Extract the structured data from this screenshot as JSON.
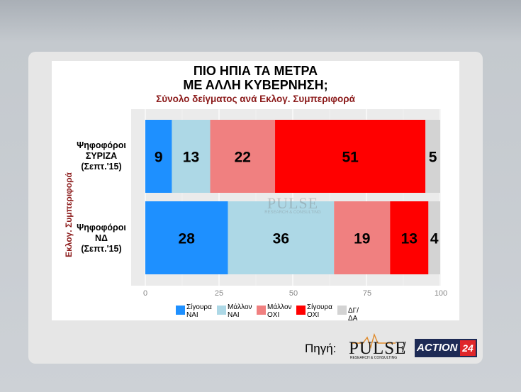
{
  "header": {
    "title_line1": "ΠΙΟ ΗΠΙΑ ΤΑ ΜΕΤΡΑ",
    "title_line2": "ΜΕ ΑΛΛΗ ΚΥΒΕΡΝΗΣΗ;",
    "subtitle": "Σύνολο δείγματος ανά Εκλογ. Συμπεριφορά"
  },
  "chart_data": {
    "type": "bar",
    "orientation": "horizontal-stacked",
    "ylabel": "Εκλογ. Συμπεριφορά",
    "categories": [
      {
        "line1": "Ψηφοφόροι",
        "line2": "ΣΥΡΙΖΑ",
        "line3": "(Σεπτ.'15)"
      },
      {
        "line1": "Ψηφοφόροι",
        "line2": "ΝΔ",
        "line3": "(Σεπτ.'15)"
      }
    ],
    "series": [
      {
        "name": "Σίγουρα ΝΑΙ",
        "name_line1": "Σίγουρα",
        "name_line2": "ΝΑΙ",
        "color": "#1e90ff",
        "values": [
          9,
          28
        ]
      },
      {
        "name": "Μάλλον ΝΑΙ",
        "name_line1": "Μάλλον",
        "name_line2": "ΝΑΙ",
        "color": "#add8e6",
        "values": [
          13,
          36
        ]
      },
      {
        "name": "Μάλλον ΟΧΙ",
        "name_line1": "Μάλλον",
        "name_line2": "ΟΧΙ",
        "color": "#f08080",
        "values": [
          22,
          19
        ]
      },
      {
        "name": "Σίγουρα ΟΧΙ",
        "name_line1": "Σίγουρα",
        "name_line2": "ΟΧΙ",
        "color": "#ff0000",
        "values": [
          51,
          13
        ]
      },
      {
        "name": "ΔΓ/ΔΑ",
        "name_line1": "ΔΓ/ΔΑ",
        "name_line2": "",
        "color": "#d3d3d3",
        "values": [
          5,
          4
        ]
      }
    ],
    "xlim": [
      0,
      100
    ],
    "xticks": [
      "0",
      "25",
      "50",
      "75",
      "100"
    ],
    "grid": true,
    "legend_position": "bottom"
  },
  "watermark": {
    "main": "PULSE",
    "sub": "RESEARCH & CONSULTING"
  },
  "footer": {
    "source_label": "Πηγή:",
    "pulse_logo": "PULSE",
    "pulse_logo_sub": "RESEARCH & CONSULTING",
    "separator": "/",
    "action_logo_text": "ACTION",
    "action_logo_num": "24"
  }
}
